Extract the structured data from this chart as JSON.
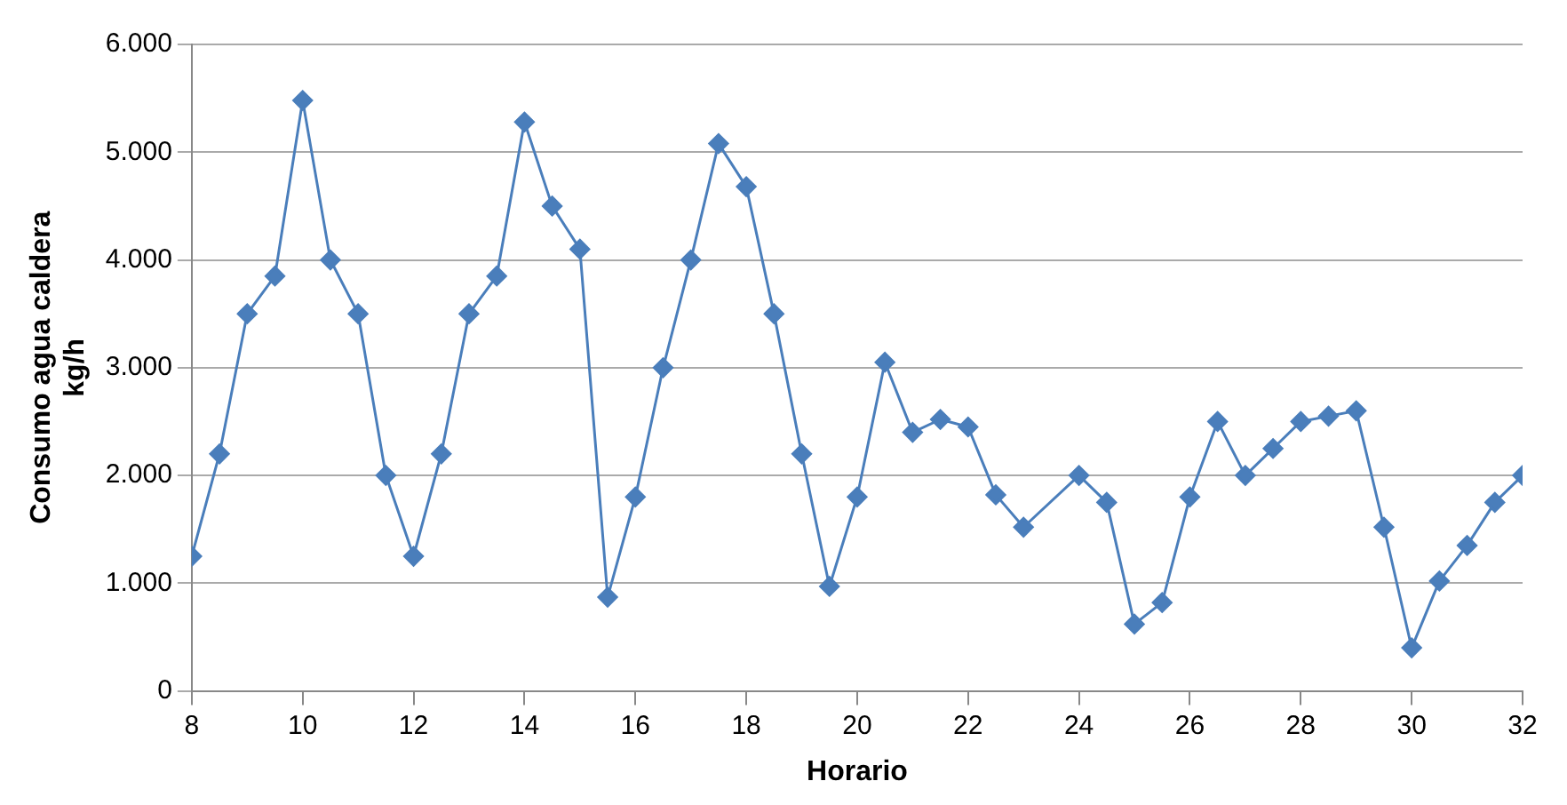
{
  "chart_data": {
    "type": "line",
    "xlabel": "Horario",
    "ylabel": "Consumo agua caldera kg/h",
    "x": [
      8,
      8.5,
      9,
      9.5,
      10,
      10.5,
      11,
      11.5,
      12,
      12.5,
      13,
      13.5,
      14,
      14.5,
      15,
      15.5,
      16,
      16.5,
      17,
      17.5,
      18,
      18.5,
      19,
      19.5,
      20,
      20.5,
      21,
      21.5,
      22,
      22.5,
      23,
      24,
      24.5,
      25,
      25.5,
      26,
      26.5,
      27,
      27.5,
      28,
      28.5,
      29,
      29.5,
      30,
      30.5,
      31,
      31.5,
      32
    ],
    "series": [
      {
        "color": "#4a7ebb",
        "values": [
          1250,
          2200,
          3500,
          3850,
          5480,
          4000,
          3500,
          2000,
          1250,
          2200,
          3500,
          3850,
          5280,
          4500,
          4100,
          870,
          1800,
          3000,
          4000,
          5080,
          4680,
          3500,
          2200,
          970,
          1800,
          3050,
          2400,
          2520,
          2450,
          1820,
          1520,
          2000,
          1750,
          620,
          820,
          1800,
          2500,
          2000,
          2250,
          2500,
          2550,
          2600,
          1520,
          400,
          1020,
          1350,
          1750,
          2000
        ]
      }
    ],
    "xlim": [
      8,
      32
    ],
    "xticks": [
      8,
      10,
      12,
      14,
      16,
      18,
      20,
      22,
      24,
      26,
      28,
      30,
      32
    ],
    "ylim": [
      0,
      6000
    ],
    "yticks": [
      {
        "value": 0,
        "label": "0"
      },
      {
        "value": 1000,
        "label": "1.000"
      },
      {
        "value": 2000,
        "label": "2.000"
      },
      {
        "value": 3000,
        "label": "3.000"
      },
      {
        "value": 4000,
        "label": "4.000"
      },
      {
        "value": 5000,
        "label": "5.000"
      },
      {
        "value": 6000,
        "label": "6.000"
      }
    ],
    "grid": "y",
    "legend": false,
    "marker": "diamond",
    "line_style": "solid"
  }
}
